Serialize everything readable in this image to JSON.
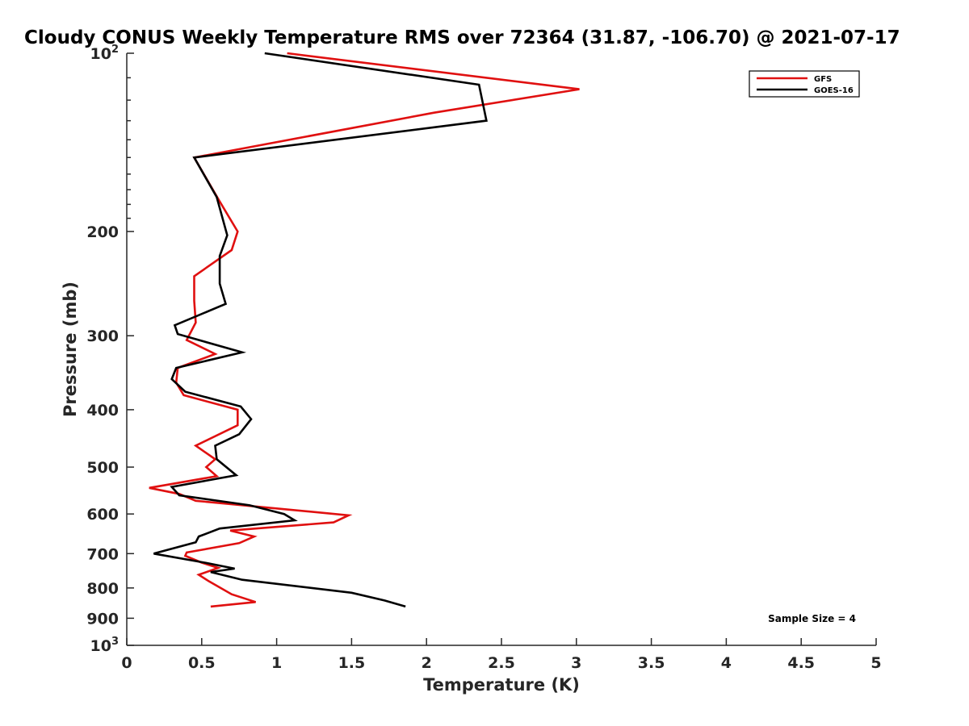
{
  "chart_data": {
    "type": "line",
    "title": "Cloudy CONUS Weekly Temperature RMS over 72364 (31.87, -106.70) @ 2021-07-17",
    "xlabel": "Temperature (K)",
    "ylabel": "Pressure (mb)",
    "xlim": [
      0,
      5
    ],
    "ylim": [
      100,
      1000
    ],
    "y_scale": "log",
    "y_reversed": true,
    "x_ticks": [
      "0",
      "0.5",
      "1",
      "1.5",
      "2",
      "2.5",
      "3",
      "3.5",
      "4",
      "4.5",
      "5"
    ],
    "y_ticks": [
      {
        "value": 100,
        "base": "10",
        "exp": "2"
      },
      {
        "value": 200,
        "label": "200"
      },
      {
        "value": 300,
        "label": "300"
      },
      {
        "value": 400,
        "label": "400"
      },
      {
        "value": 500,
        "label": "500"
      },
      {
        "value": 600,
        "label": "600"
      },
      {
        "value": 700,
        "label": "700"
      },
      {
        "value": 800,
        "label": "800"
      },
      {
        "value": 900,
        "label": "900"
      },
      {
        "value": 1000,
        "base": "10",
        "exp": "3"
      }
    ],
    "grid": false,
    "legend_position": "top-right",
    "annotation": "Sample Size = 4",
    "series": [
      {
        "name": "GFS",
        "color": "#e01010",
        "points": [
          [
            1.07,
            100
          ],
          [
            3.02,
            115
          ],
          [
            2.05,
            126
          ],
          [
            0.45,
            150
          ],
          [
            0.62,
            178
          ],
          [
            0.74,
            200
          ],
          [
            0.7,
            215
          ],
          [
            0.45,
            238
          ],
          [
            0.45,
            262
          ],
          [
            0.46,
            285
          ],
          [
            0.4,
            305
          ],
          [
            0.59,
            322
          ],
          [
            0.34,
            340
          ],
          [
            0.33,
            360
          ],
          [
            0.38,
            378
          ],
          [
            0.74,
            400
          ],
          [
            0.74,
            425
          ],
          [
            0.46,
            460
          ],
          [
            0.59,
            485
          ],
          [
            0.53,
            500
          ],
          [
            0.6,
            518
          ],
          [
            0.15,
            542
          ],
          [
            0.35,
            555
          ],
          [
            0.46,
            570
          ],
          [
            1.48,
            603
          ],
          [
            1.38,
            620
          ],
          [
            0.69,
            640
          ],
          [
            0.85,
            655
          ],
          [
            0.75,
            672
          ],
          [
            0.4,
            697
          ],
          [
            0.39,
            706
          ],
          [
            0.5,
            725
          ],
          [
            0.61,
            740
          ],
          [
            0.48,
            760
          ],
          [
            0.55,
            780
          ],
          [
            0.7,
            820
          ],
          [
            0.86,
            845
          ],
          [
            0.56,
            860
          ]
        ]
      },
      {
        "name": "GOES-16",
        "color": "#000000",
        "points": [
          [
            0.92,
            100
          ],
          [
            2.35,
            113
          ],
          [
            2.4,
            130
          ],
          [
            0.45,
            150
          ],
          [
            0.6,
            175
          ],
          [
            0.67,
            203
          ],
          [
            0.62,
            220
          ],
          [
            0.62,
            245
          ],
          [
            0.66,
            265
          ],
          [
            0.32,
            288
          ],
          [
            0.34,
            298
          ],
          [
            0.77,
            320
          ],
          [
            0.33,
            340
          ],
          [
            0.3,
            355
          ],
          [
            0.39,
            373
          ],
          [
            0.76,
            395
          ],
          [
            0.83,
            415
          ],
          [
            0.75,
            440
          ],
          [
            0.59,
            460
          ],
          [
            0.6,
            485
          ],
          [
            0.73,
            516
          ],
          [
            0.3,
            540
          ],
          [
            0.35,
            558
          ],
          [
            0.82,
            580
          ],
          [
            1.05,
            600
          ],
          [
            1.12,
            615
          ],
          [
            0.62,
            635
          ],
          [
            0.48,
            655
          ],
          [
            0.46,
            670
          ],
          [
            0.18,
            700
          ],
          [
            0.52,
            725
          ],
          [
            0.72,
            742
          ],
          [
            0.56,
            752
          ],
          [
            0.77,
            775
          ],
          [
            1.5,
            815
          ],
          [
            1.72,
            840
          ],
          [
            1.86,
            860
          ]
        ]
      }
    ]
  }
}
